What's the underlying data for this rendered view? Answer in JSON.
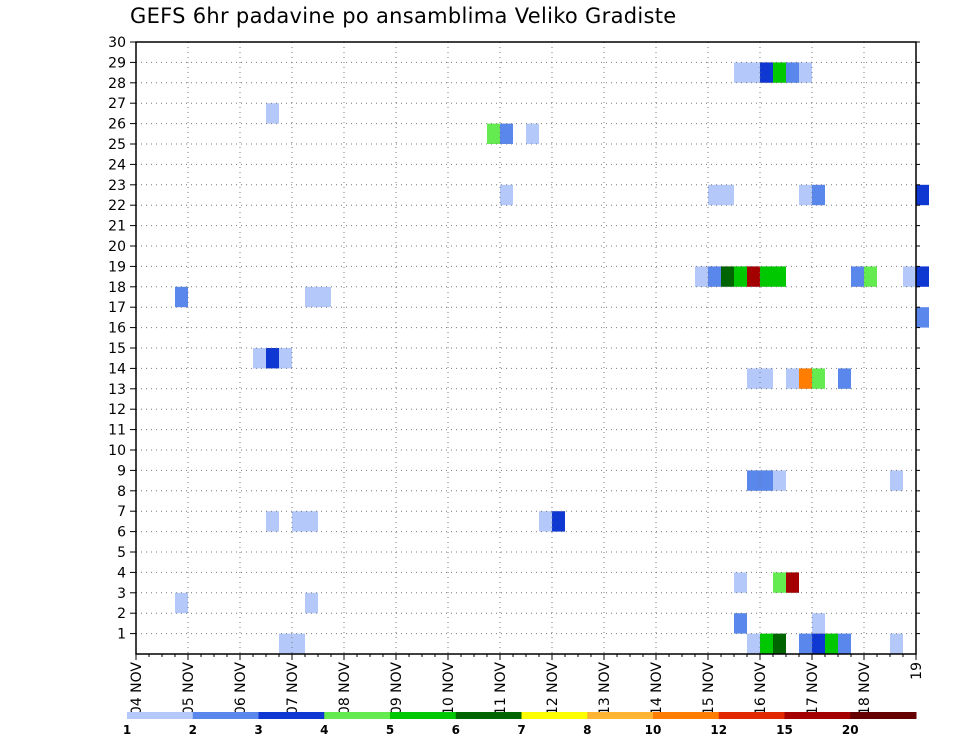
{
  "title": "GEFS 6hr padavine po ansamblima Veliko Gradiste",
  "chart_data": {
    "type": "heatmap",
    "title": "GEFS 6hr padavine po ansamblima Veliko Gradiste",
    "xlabel": "",
    "ylabel": "",
    "x_ticks": [
      "04 NOV",
      "05 NOV",
      "06 NOV",
      "07 NOV",
      "08 NOV",
      "09 NOV",
      "10 NOV",
      "11 NOV",
      "12 NOV",
      "13 NOV",
      "14 NOV",
      "15 NOV",
      "16 NOV",
      "17 NOV",
      "18 NOV",
      "19"
    ],
    "x_range_days": [
      0,
      15
    ],
    "y_ticks": [
      1,
      2,
      3,
      4,
      5,
      6,
      7,
      8,
      9,
      10,
      11,
      12,
      13,
      14,
      15,
      16,
      17,
      18,
      19,
      20,
      21,
      22,
      23,
      24,
      25,
      26,
      27,
      28,
      29,
      30
    ],
    "y_range": [
      0,
      30
    ],
    "grid": true,
    "legend": {
      "placement": "bottom",
      "labels": [
        "1",
        "2",
        "3",
        "4",
        "5",
        "6",
        "7",
        "8",
        "10",
        "12",
        "15",
        "20"
      ],
      "colors": [
        "#b4c8fa",
        "#5a87eb",
        "#0f37d2",
        "#64eb50",
        "#00c800",
        "#006400",
        "#ffff00",
        "#ffb432",
        "#ff7d00",
        "#e12800",
        "#a50000",
        "#640000"
      ]
    },
    "levels": [
      1,
      2,
      3,
      4,
      5,
      6,
      7,
      8,
      10,
      12,
      15,
      20
    ],
    "colors": [
      "#b4c8fa",
      "#5a87eb",
      "#0f37d2",
      "#64eb50",
      "#00c800",
      "#006400",
      "#ffff00",
      "#ffb432",
      "#ff7d00",
      "#e12800",
      "#a50000",
      "#640000"
    ],
    "cells_note": "each cell: [day_offset_from_04_NOV, member, value_mm]",
    "cells": [
      [
        11.5,
        29,
        1.5
      ],
      [
        11.75,
        29,
        1.5
      ],
      [
        12.0,
        29,
        3.5
      ],
      [
        12.25,
        29,
        5.0
      ],
      [
        12.5,
        29,
        2.5
      ],
      [
        12.75,
        29,
        1.5
      ],
      [
        2.5,
        27,
        1.5
      ],
      [
        6.75,
        26,
        4.5
      ],
      [
        7.0,
        26,
        2.5
      ],
      [
        7.5,
        26,
        1.5
      ],
      [
        7.0,
        23,
        1.5
      ],
      [
        11.0,
        23,
        1.5
      ],
      [
        11.25,
        23,
        1.5
      ],
      [
        12.75,
        23,
        1.5
      ],
      [
        13.0,
        23,
        2.5
      ],
      [
        15.0,
        23,
        3.5
      ],
      [
        10.75,
        19,
        1.5
      ],
      [
        11.0,
        19,
        2.5
      ],
      [
        11.25,
        19,
        6.5
      ],
      [
        11.5,
        19,
        5.5
      ],
      [
        11.75,
        19,
        18.0
      ],
      [
        12.0,
        19,
        5.5
      ],
      [
        12.25,
        19,
        5.5
      ],
      [
        13.75,
        19,
        2.5
      ],
      [
        14.0,
        19,
        4.5
      ],
      [
        14.75,
        19,
        1.5
      ],
      [
        15.0,
        19,
        3.5
      ],
      [
        0.75,
        18,
        2.5
      ],
      [
        3.25,
        18,
        1.5
      ],
      [
        3.5,
        18,
        1.5
      ],
      [
        15.0,
        17,
        2.5
      ],
      [
        2.25,
        15,
        1.5
      ],
      [
        2.5,
        15,
        3.5
      ],
      [
        2.75,
        15,
        1.5
      ],
      [
        11.75,
        14,
        1.5
      ],
      [
        12.0,
        14,
        1.5
      ],
      [
        12.5,
        14,
        1.5
      ],
      [
        12.75,
        14,
        11.0
      ],
      [
        13.0,
        14,
        4.5
      ],
      [
        13.5,
        14,
        2.5
      ],
      [
        11.75,
        9,
        2.5
      ],
      [
        12.0,
        9,
        2.5
      ],
      [
        12.25,
        9,
        1.5
      ],
      [
        14.5,
        9,
        1.5
      ],
      [
        2.5,
        7,
        1.5
      ],
      [
        3.0,
        7,
        1.5
      ],
      [
        3.25,
        7,
        1.5
      ],
      [
        7.75,
        7,
        1.5
      ],
      [
        8.0,
        7,
        3.5
      ],
      [
        11.5,
        4,
        1.5
      ],
      [
        12.25,
        4,
        4.5
      ],
      [
        12.5,
        4,
        18.0
      ],
      [
        0.75,
        3,
        1.5
      ],
      [
        3.25,
        3,
        1.5
      ],
      [
        11.5,
        2,
        2.5
      ],
      [
        13.0,
        2,
        1.5
      ],
      [
        2.75,
        1,
        1.5
      ],
      [
        3.0,
        1,
        1.5
      ],
      [
        11.75,
        1,
        1.5
      ],
      [
        12.0,
        1,
        5.5
      ],
      [
        12.25,
        1,
        6.5
      ],
      [
        12.75,
        1,
        2.5
      ],
      [
        13.0,
        1,
        3.5
      ],
      [
        13.25,
        1,
        5.5
      ],
      [
        13.5,
        1,
        2.5
      ],
      [
        14.5,
        1,
        1.5
      ]
    ]
  }
}
